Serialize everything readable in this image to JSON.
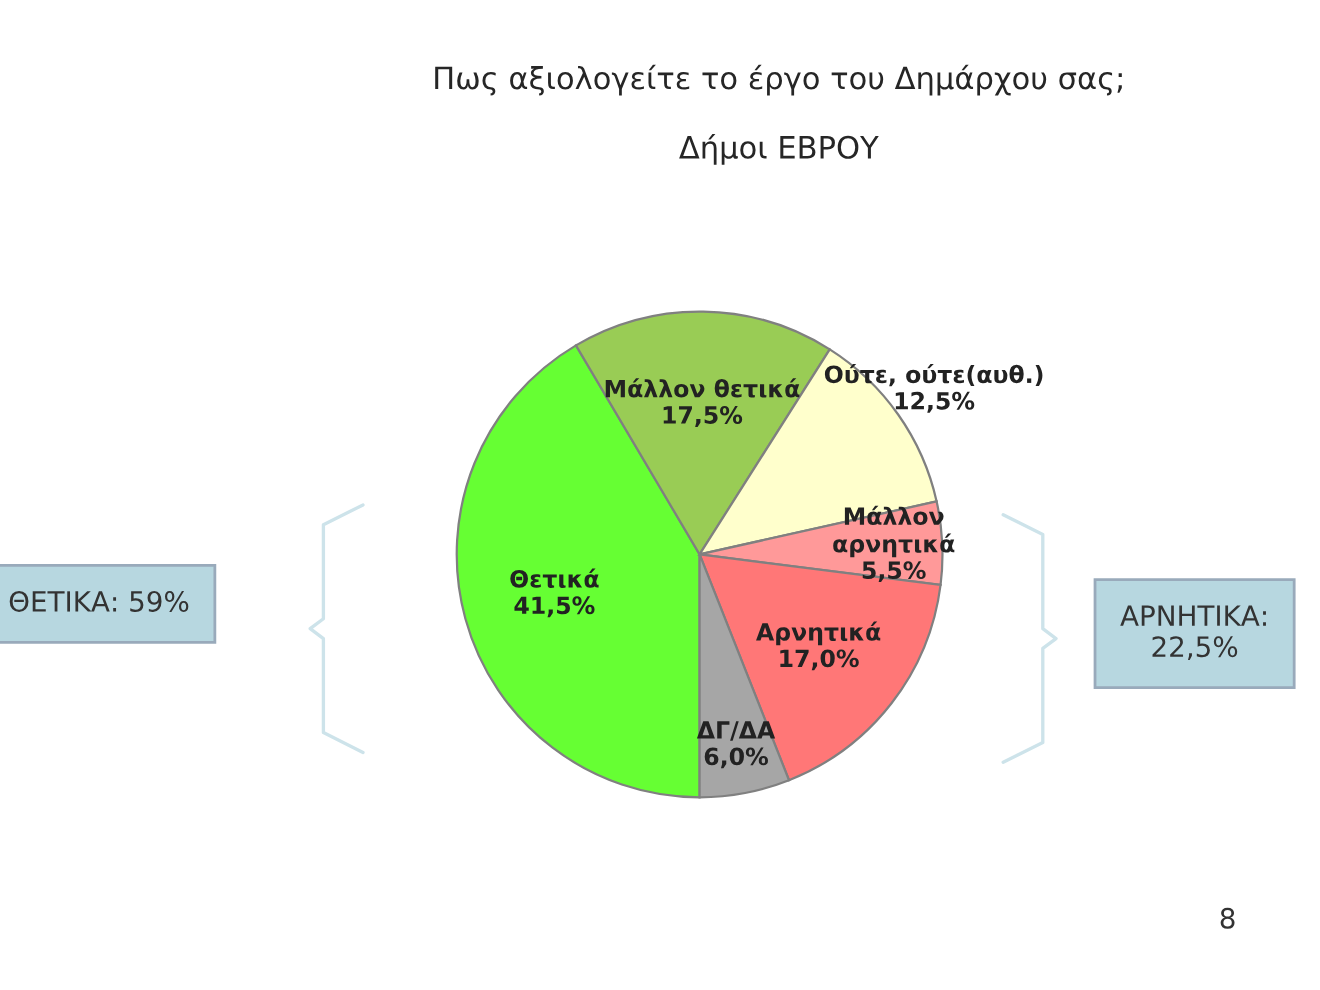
{
  "chart_data": {
    "type": "pie",
    "title": "Πως αξιολογείτε το έργο του Δημάρχου σας;",
    "subtitle": "Δήμοι ΕΒΡΟΥ",
    "categories": [
      "Θετικά",
      "Μάλλον θετικά",
      "Ούτε, ούτε(αυθ.)",
      "Μάλλον αρνητικά",
      "Αρνητικά",
      "ΔΓ/ΔΑ"
    ],
    "values": [
      41.5,
      17.5,
      12.5,
      5.5,
      17.0,
      6.0
    ],
    "colors": [
      "#66ff33",
      "#99cc55",
      "#ffffcc",
      "#ff9999",
      "#ff7777",
      "#a6a6a6"
    ],
    "value_labels": [
      "41,5%",
      "17,5%",
      "12,5%",
      "5,5%",
      "17,0%",
      "6,0%"
    ],
    "annotations": [
      "ΘΕΤΙΚΑ: 59%",
      "ΑΡΝΗΤΙΚΑ:\n22,5%",
      "8"
    ]
  }
}
